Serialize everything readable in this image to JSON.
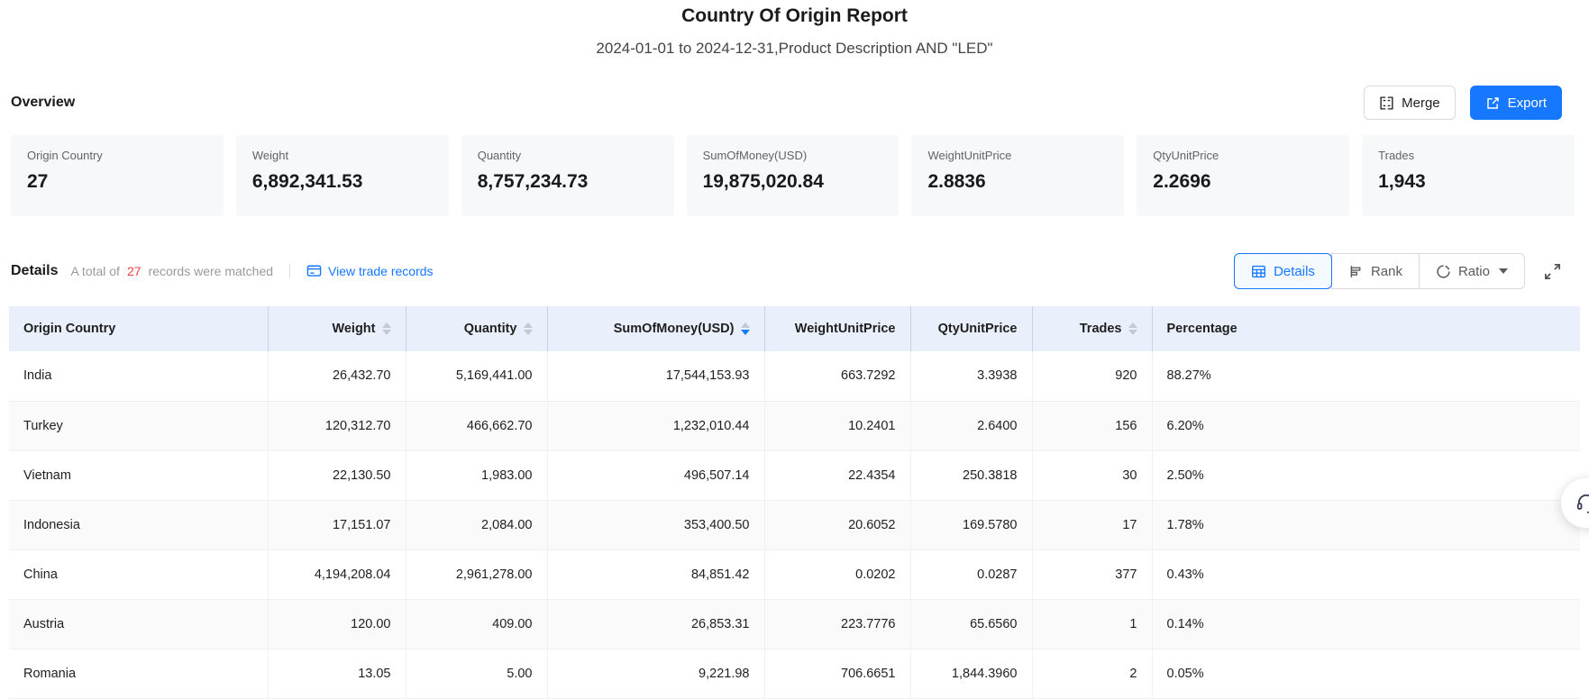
{
  "report": {
    "title": "Country Of Origin Report",
    "subtitle": "2024-01-01 to 2024-12-31,Product Description AND \"LED\""
  },
  "overview": {
    "heading": "Overview",
    "merge_label": "Merge",
    "export_label": "Export",
    "cards": [
      {
        "label": "Origin Country",
        "value": "27"
      },
      {
        "label": "Weight",
        "value": "6,892,341.53"
      },
      {
        "label": "Quantity",
        "value": "8,757,234.73"
      },
      {
        "label": "SumOfMoney(USD)",
        "value": "19,875,020.84"
      },
      {
        "label": "WeightUnitPrice",
        "value": "2.8836"
      },
      {
        "label": "QtyUnitPrice",
        "value": "2.2696"
      },
      {
        "label": "Trades",
        "value": "1,943"
      }
    ]
  },
  "details": {
    "heading": "Details",
    "summary_prefix": "A total of",
    "summary_count": "27",
    "summary_suffix": "records were matched",
    "link_label": "View trade records",
    "tabs": [
      {
        "label": "Details",
        "icon": "table-icon",
        "active": true,
        "dropdown": false
      },
      {
        "label": "Rank",
        "icon": "rank-bars-icon",
        "active": false,
        "dropdown": false
      },
      {
        "label": "Ratio",
        "icon": "pie-ring-icon",
        "active": false,
        "dropdown": true
      }
    ]
  },
  "table": {
    "columns": [
      {
        "label": "Origin Country",
        "align": "left",
        "sortable": false,
        "sort": null
      },
      {
        "label": "Weight",
        "align": "right",
        "sortable": true,
        "sort": null
      },
      {
        "label": "Quantity",
        "align": "right",
        "sortable": true,
        "sort": null
      },
      {
        "label": "SumOfMoney(USD)",
        "align": "right",
        "sortable": true,
        "sort": "desc"
      },
      {
        "label": "WeightUnitPrice",
        "align": "right",
        "sortable": false,
        "sort": null
      },
      {
        "label": "QtyUnitPrice",
        "align": "right",
        "sortable": false,
        "sort": null
      },
      {
        "label": "Trades",
        "align": "right",
        "sortable": true,
        "sort": null
      },
      {
        "label": "Percentage",
        "align": "left",
        "sortable": false,
        "sort": null
      }
    ],
    "rows": [
      [
        "India",
        "26,432.70",
        "5,169,441.00",
        "17,544,153.93",
        "663.7292",
        "3.3938",
        "920",
        "88.27%"
      ],
      [
        "Turkey",
        "120,312.70",
        "466,662.70",
        "1,232,010.44",
        "10.2401",
        "2.6400",
        "156",
        "6.20%"
      ],
      [
        "Vietnam",
        "22,130.50",
        "1,983.00",
        "496,507.14",
        "22.4354",
        "250.3818",
        "30",
        "2.50%"
      ],
      [
        "Indonesia",
        "17,151.07",
        "2,084.00",
        "353,400.50",
        "20.6052",
        "169.5780",
        "17",
        "1.78%"
      ],
      [
        "China",
        "4,194,208.04",
        "2,961,278.00",
        "84,851.42",
        "0.0202",
        "0.0287",
        "377",
        "0.43%"
      ],
      [
        "Austria",
        "120.00",
        "409.00",
        "26,853.31",
        "223.7776",
        "65.6560",
        "1",
        "0.14%"
      ],
      [
        "Romania",
        "13.05",
        "5.00",
        "9,221.98",
        "706.6651",
        "1,844.3960",
        "2",
        "0.05%"
      ]
    ]
  },
  "colors": {
    "accent_blue": "#1677ff",
    "count_red": "#f53f3f",
    "table_header_bg": "#e9effb",
    "stripe_bg": "#fafafa",
    "card_bg": "#f7f8fa"
  },
  "floating": {
    "support_icon": "headset-icon"
  }
}
